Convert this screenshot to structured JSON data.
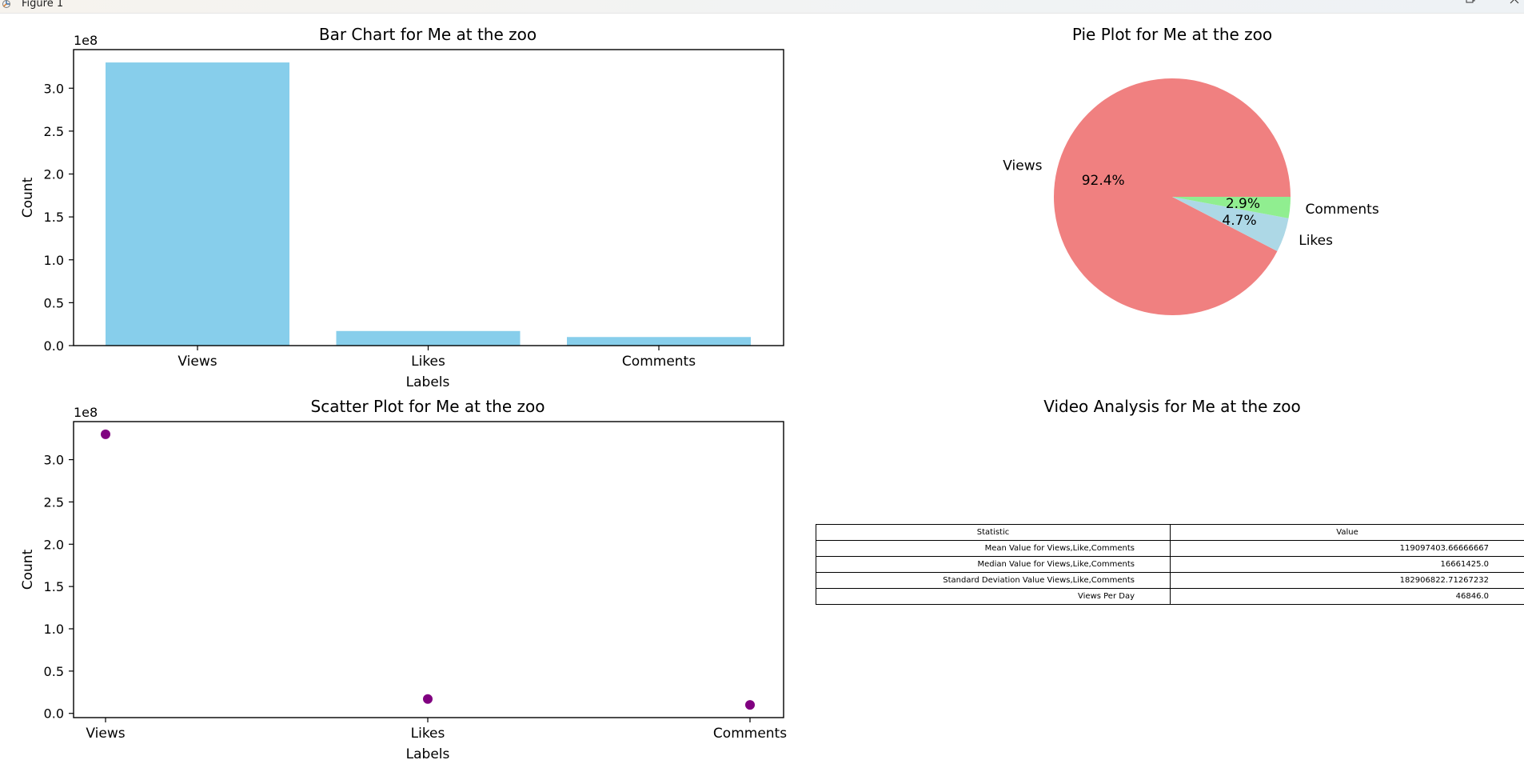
{
  "window": {
    "title": "Figure 1",
    "buttons": [
      "minimize-icon",
      "maximize-icon",
      "close-icon"
    ]
  },
  "colors": {
    "bar": "#87CEEB",
    "scatter": "#800080",
    "pie": [
      "#F08080",
      "#ADD8E6",
      "#90EE90"
    ],
    "axis": "#000000"
  },
  "chart_data": [
    {
      "type": "bar",
      "title": "Bar Chart for Me at the zoo",
      "categories": [
        "Views",
        "Likes",
        "Comments"
      ],
      "values": [
        330000000,
        17000000,
        10000000
      ],
      "xlabel": "Labels",
      "ylabel": "Count",
      "offset_label": "1e8",
      "ylim": [
        0,
        3.45
      ],
      "yticks": [
        "0.0",
        "0.5",
        "1.0",
        "1.5",
        "2.0",
        "2.5",
        "3.0"
      ],
      "ytick_values": [
        0,
        0.5,
        1.0,
        1.5,
        2.0,
        2.5,
        3.0
      ],
      "scale": 100000000,
      "grid": false
    },
    {
      "type": "pie",
      "title": "Pie Plot for Me at the zoo",
      "labels": [
        "Views",
        "Likes",
        "Comments"
      ],
      "values": [
        92.4,
        4.7,
        2.9
      ],
      "pct_labels": [
        "92.4%",
        "4.7%",
        "2.9%"
      ],
      "start_angle_deg": 0,
      "direction": "counterclockwise"
    },
    {
      "type": "scatter",
      "title": "Scatter Plot for Me at the zoo",
      "categories": [
        "Views",
        "Likes",
        "Comments"
      ],
      "values": [
        330000000,
        17000000,
        10000000
      ],
      "xlabel": "Labels",
      "ylabel": "Count",
      "offset_label": "1e8",
      "ylim": [
        -0.05,
        3.45
      ],
      "yticks": [
        "0.0",
        "0.5",
        "1.0",
        "1.5",
        "2.0",
        "2.5",
        "3.0"
      ],
      "ytick_values": [
        0,
        0.5,
        1.0,
        1.5,
        2.0,
        2.5,
        3.0
      ],
      "scale": 100000000,
      "grid": false
    },
    {
      "type": "table",
      "title": "Video Analysis for Me at the zoo",
      "columns": [
        "Statistic",
        "Value"
      ],
      "rows": [
        [
          "Mean Value for Views,Like,Comments",
          "119097403.66666667"
        ],
        [
          "Median Value for Views,Like,Comments",
          "16661425.0"
        ],
        [
          "Standard Deviation Value Views,Like,Comments",
          "182906822.71267232"
        ],
        [
          "Views Per Day",
          "46846.0"
        ]
      ]
    }
  ]
}
